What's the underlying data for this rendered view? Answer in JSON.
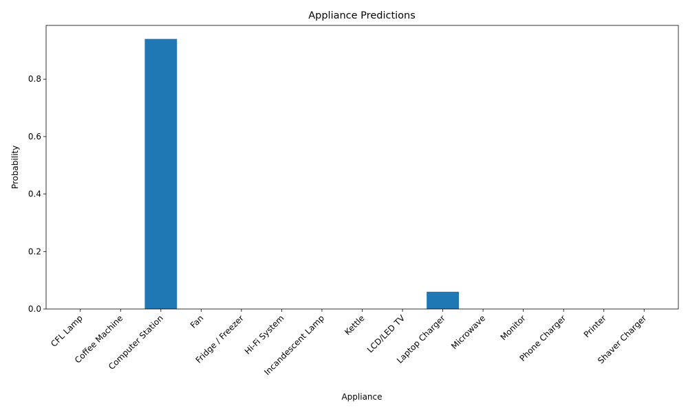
{
  "chart_data": {
    "type": "bar",
    "title": "Appliance Predictions",
    "xlabel": "Appliance",
    "ylabel": "Probability",
    "categories": [
      "CFL Lamp",
      "Coffee Machine",
      "Computer Station",
      "Fan",
      "Fridge / Freezer",
      "Hi-Fi System",
      "Incandescent Lamp",
      "Kettle",
      "LCD/LED TV",
      "Laptop Charger",
      "Microwave",
      "Monitor",
      "Phone Charger",
      "Printer",
      "Shaver Charger"
    ],
    "values": [
      0,
      0,
      0.94,
      0,
      0,
      0,
      0,
      0,
      0,
      0.06,
      0,
      0,
      0,
      0,
      0
    ],
    "ylim": [
      0,
      0.987
    ],
    "yticks": [
      0.0,
      0.2,
      0.4,
      0.6,
      0.8
    ],
    "ytick_labels": [
      "0.0",
      "0.2",
      "0.4",
      "0.6",
      "0.8"
    ],
    "bar_color": "#1f77b4",
    "grid": false,
    "legend": "none"
  }
}
